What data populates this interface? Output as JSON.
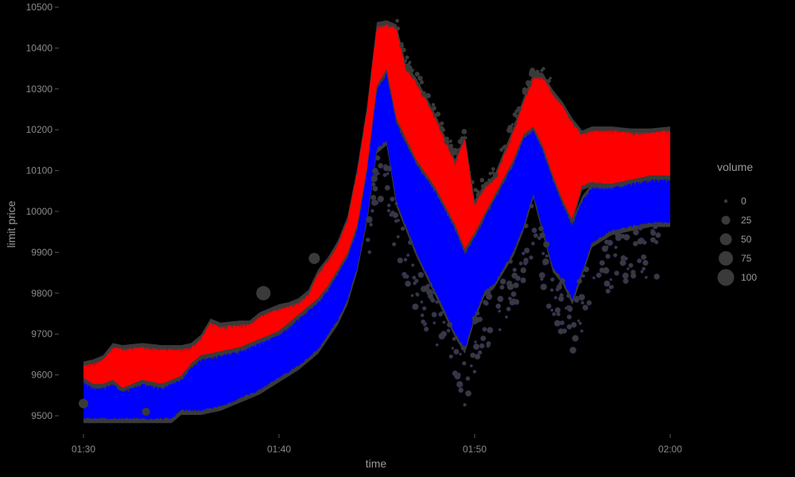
{
  "chart_data": {
    "type": "scatter",
    "title": "",
    "xlabel": "time",
    "ylabel": "limit price",
    "x_ticks": [
      "01:30",
      "01:40",
      "01:50",
      "02:00"
    ],
    "x_tick_minutes": [
      0,
      10,
      20,
      30
    ],
    "y_ticks": [
      9500,
      9600,
      9700,
      9800,
      9900,
      10000,
      10100,
      10200,
      10300,
      10400,
      10500
    ],
    "xlim_minutes": [
      0,
      30
    ],
    "ylim": [
      9485,
      10500
    ],
    "grid": false,
    "background": "#000000",
    "legend": {
      "title": "volume",
      "position": "right",
      "sizes": [
        0,
        25,
        50,
        75,
        100
      ],
      "labels": [
        "0",
        "25",
        "50",
        "75",
        "100"
      ],
      "color": "#3a3a3a"
    },
    "series": [
      {
        "color": "#ff0000",
        "upper": [
          [
            0,
            9625
          ],
          [
            0.5,
            9630
          ],
          [
            1,
            9640
          ],
          [
            1.5,
            9670
          ],
          [
            2,
            9665
          ],
          [
            3,
            9670
          ],
          [
            4,
            9665
          ],
          [
            5,
            9665
          ],
          [
            5.5,
            9670
          ],
          [
            6,
            9690
          ],
          [
            6.5,
            9730
          ],
          [
            7,
            9720
          ],
          [
            8,
            9725
          ],
          [
            8.5,
            9725
          ],
          [
            9,
            9745
          ],
          [
            10,
            9765
          ],
          [
            10.5,
            9770
          ],
          [
            11,
            9780
          ],
          [
            11.5,
            9800
          ],
          [
            12,
            9850
          ],
          [
            12.5,
            9880
          ],
          [
            13,
            9920
          ],
          [
            13.5,
            9980
          ],
          [
            14,
            10100
          ],
          [
            14.5,
            10250
          ],
          [
            15,
            10455
          ],
          [
            15.5,
            10460
          ],
          [
            16,
            10450
          ],
          [
            16.5,
            10350
          ],
          [
            17,
            10320
          ],
          [
            18,
            10230
          ],
          [
            19,
            10120
          ],
          [
            19.5,
            10180
          ],
          [
            20,
            10020
          ],
          [
            20.5,
            10060
          ],
          [
            21,
            10080
          ],
          [
            21.5,
            10140
          ],
          [
            22,
            10200
          ],
          [
            22.5,
            10270
          ],
          [
            23,
            10330
          ],
          [
            23.5,
            10330
          ],
          [
            24,
            10290
          ],
          [
            24.5,
            10260
          ],
          [
            25,
            10220
          ],
          [
            25.5,
            10190
          ],
          [
            26,
            10200
          ],
          [
            27,
            10200
          ],
          [
            28,
            10195
          ],
          [
            29,
            10195
          ],
          [
            30,
            10200
          ]
        ],
        "lower": [
          [
            0,
            9530
          ],
          [
            0.5,
            9540
          ],
          [
            1,
            9560
          ],
          [
            1.5,
            9560
          ],
          [
            2,
            9565
          ],
          [
            3,
            9570
          ],
          [
            4,
            9575
          ],
          [
            5,
            9575
          ],
          [
            5.5,
            9585
          ],
          [
            6,
            9630
          ],
          [
            7,
            9640
          ],
          [
            8,
            9630
          ],
          [
            9,
            9660
          ],
          [
            10,
            9690
          ],
          [
            11,
            9720
          ],
          [
            12,
            9775
          ],
          [
            12.5,
            9790
          ],
          [
            13,
            9820
          ],
          [
            13.5,
            9870
          ],
          [
            14,
            9950
          ],
          [
            14.5,
            10080
          ],
          [
            15,
            10250
          ],
          [
            15.5,
            10270
          ],
          [
            16,
            10160
          ],
          [
            16.5,
            10080
          ],
          [
            17,
            10040
          ],
          [
            18,
            9980
          ],
          [
            19,
            9900
          ],
          [
            19.5,
            9830
          ],
          [
            20,
            9940
          ],
          [
            20.5,
            9960
          ],
          [
            21,
            10010
          ],
          [
            22,
            10080
          ],
          [
            22.5,
            10120
          ],
          [
            23,
            10130
          ],
          [
            23.5,
            10020
          ],
          [
            24,
            10000
          ],
          [
            24.5,
            9990
          ],
          [
            25,
            9980
          ],
          [
            25.5,
            10060
          ],
          [
            26,
            10070
          ],
          [
            27,
            10060
          ],
          [
            28,
            10070
          ],
          [
            29,
            10080
          ],
          [
            30,
            10080
          ]
        ]
      },
      {
        "color": "#0000ff",
        "upper": [
          [
            0,
            9585
          ],
          [
            0.5,
            9570
          ],
          [
            1,
            9570
          ],
          [
            1.5,
            9580
          ],
          [
            2,
            9560
          ],
          [
            3,
            9580
          ],
          [
            4,
            9570
          ],
          [
            5,
            9590
          ],
          [
            5.5,
            9620
          ],
          [
            6,
            9640
          ],
          [
            7,
            9650
          ],
          [
            8,
            9660
          ],
          [
            9,
            9680
          ],
          [
            10,
            9700
          ],
          [
            11,
            9740
          ],
          [
            12,
            9780
          ],
          [
            12.5,
            9810
          ],
          [
            13,
            9850
          ],
          [
            13.5,
            9890
          ],
          [
            14,
            9960
          ],
          [
            14.5,
            10100
          ],
          [
            15,
            10300
          ],
          [
            15.5,
            10340
          ],
          [
            16,
            10220
          ],
          [
            17,
            10120
          ],
          [
            18,
            10050
          ],
          [
            19,
            9960
          ],
          [
            19.5,
            9900
          ],
          [
            20,
            9940
          ],
          [
            21,
            10030
          ],
          [
            22,
            10120
          ],
          [
            22.5,
            10180
          ],
          [
            23,
            10200
          ],
          [
            23.5,
            10150
          ],
          [
            24,
            10080
          ],
          [
            24.5,
            10020
          ],
          [
            25,
            9970
          ],
          [
            25.5,
            10030
          ],
          [
            26,
            10060
          ],
          [
            27,
            10060
          ],
          [
            28,
            10070
          ],
          [
            29,
            10080
          ],
          [
            30,
            10080
          ]
        ],
        "lower": [
          [
            0,
            9490
          ],
          [
            1,
            9490
          ],
          [
            2,
            9490
          ],
          [
            3,
            9490
          ],
          [
            4,
            9490
          ],
          [
            4.5,
            9490
          ],
          [
            5,
            9510
          ],
          [
            6,
            9510
          ],
          [
            7,
            9520
          ],
          [
            8,
            9540
          ],
          [
            9,
            9560
          ],
          [
            10,
            9590
          ],
          [
            11,
            9620
          ],
          [
            12,
            9660
          ],
          [
            13,
            9730
          ],
          [
            13.5,
            9780
          ],
          [
            14,
            9860
          ],
          [
            14.5,
            9980
          ],
          [
            15,
            10150
          ],
          [
            15.5,
            10170
          ],
          [
            16,
            10020
          ],
          [
            17,
            9900
          ],
          [
            18,
            9800
          ],
          [
            19,
            9700
          ],
          [
            19.5,
            9660
          ],
          [
            20,
            9740
          ],
          [
            20.5,
            9800
          ],
          [
            21,
            9820
          ],
          [
            22,
            9900
          ],
          [
            22.5,
            9960
          ],
          [
            23,
            10040
          ],
          [
            23.5,
            9950
          ],
          [
            24,
            9860
          ],
          [
            24.5,
            9830
          ],
          [
            25,
            9780
          ],
          [
            25.5,
            9850
          ],
          [
            26,
            9920
          ],
          [
            27,
            9950
          ],
          [
            28,
            9960
          ],
          [
            29,
            9970
          ],
          [
            30,
            9970
          ]
        ]
      }
    ]
  }
}
